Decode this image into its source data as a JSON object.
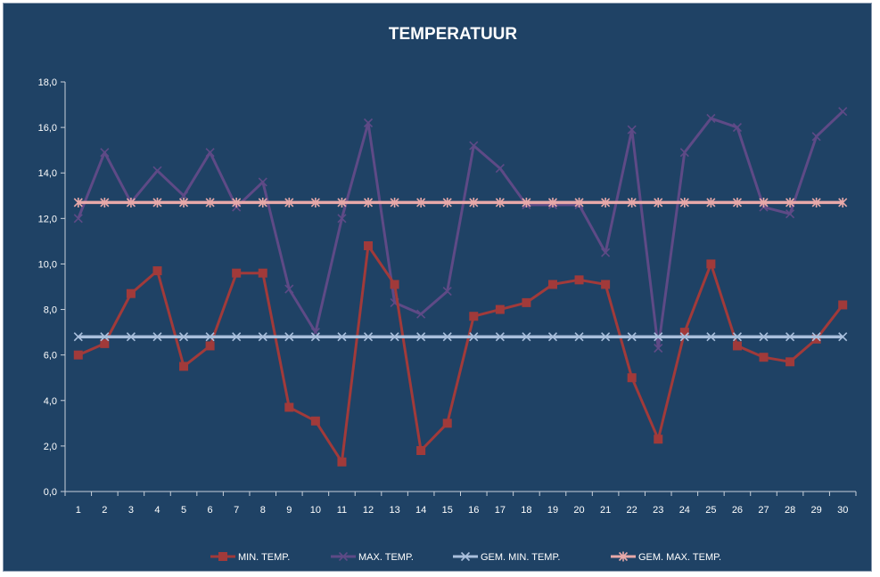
{
  "chart_data": {
    "type": "line",
    "title": "TEMPERATUUR",
    "xlabel": "",
    "ylabel": "",
    "x": [
      1,
      2,
      3,
      4,
      5,
      6,
      7,
      8,
      9,
      10,
      11,
      12,
      13,
      14,
      15,
      16,
      17,
      18,
      19,
      20,
      21,
      22,
      23,
      24,
      25,
      26,
      27,
      28,
      29,
      30
    ],
    "ylim": [
      0,
      18
    ],
    "y_ticks": [
      "0,0",
      "2,0",
      "4,0",
      "6,0",
      "8,0",
      "10,0",
      "12,0",
      "14,0",
      "16,0",
      "18,0"
    ],
    "grid": false,
    "legend_position": "bottom",
    "series": [
      {
        "name": "MIN. TEMP.",
        "color": "#a13a3a",
        "marker": "square",
        "values": [
          6.0,
          6.5,
          8.7,
          9.7,
          5.5,
          6.4,
          9.6,
          9.6,
          3.7,
          3.1,
          1.3,
          10.8,
          9.1,
          1.8,
          3.0,
          7.7,
          8.0,
          8.3,
          9.1,
          9.3,
          9.1,
          5.0,
          2.3,
          7.0,
          10.0,
          6.4,
          5.9,
          5.7,
          6.7,
          8.2
        ]
      },
      {
        "name": "MAX. TEMP.",
        "color": "#5e4a86",
        "marker": "x",
        "values": [
          12.0,
          14.9,
          12.7,
          14.1,
          13.0,
          14.9,
          12.5,
          13.6,
          8.9,
          7.0,
          12.0,
          16.2,
          8.3,
          7.8,
          8.8,
          15.2,
          14.2,
          12.6,
          12.6,
          12.6,
          10.5,
          15.9,
          6.3,
          14.9,
          16.4,
          16.0,
          12.5,
          12.2,
          15.6,
          16.7
        ]
      },
      {
        "name": "GEM. MIN. TEMP.",
        "color": "#a9bfdc",
        "marker": "x",
        "values": [
          6.8,
          6.8,
          6.8,
          6.8,
          6.8,
          6.8,
          6.8,
          6.8,
          6.8,
          6.8,
          6.8,
          6.8,
          6.8,
          6.8,
          6.8,
          6.8,
          6.8,
          6.8,
          6.8,
          6.8,
          6.8,
          6.8,
          6.8,
          6.8,
          6.8,
          6.8,
          6.8,
          6.8,
          6.8,
          6.8
        ]
      },
      {
        "name": "GEM. MAX. TEMP.",
        "color": "#e8a9a9",
        "marker": "asterisk",
        "values": [
          12.7,
          12.7,
          12.7,
          12.7,
          12.7,
          12.7,
          12.7,
          12.7,
          12.7,
          12.7,
          12.7,
          12.7,
          12.7,
          12.7,
          12.7,
          12.7,
          12.7,
          12.7,
          12.7,
          12.7,
          12.7,
          12.7,
          12.7,
          12.7,
          12.7,
          12.7,
          12.7,
          12.7,
          12.7,
          12.7
        ]
      }
    ]
  }
}
